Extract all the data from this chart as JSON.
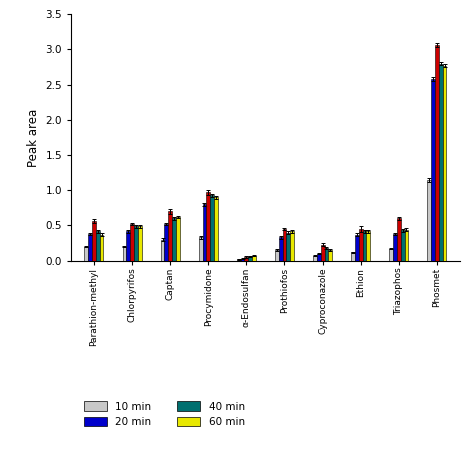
{
  "categories": [
    "Parathion-methyl",
    "Chlorpyrifos",
    "Captan",
    "Procymidone",
    "α-Endosulfan",
    "Prothiofos",
    "Cyproconazole",
    "Ethion",
    "Triazophos",
    "Phosmet"
  ],
  "series": {
    "10 min": [
      0.2,
      0.2,
      0.3,
      0.33,
      0.02,
      0.15,
      0.07,
      0.12,
      0.17,
      1.15
    ],
    "20 min": [
      0.38,
      0.42,
      0.52,
      0.8,
      0.03,
      0.33,
      0.1,
      0.37,
      0.38,
      2.58
    ],
    "30 min": [
      0.56,
      0.52,
      0.7,
      0.97,
      0.05,
      0.45,
      0.23,
      0.45,
      0.6,
      3.06
    ],
    "40 min": [
      0.42,
      0.49,
      0.6,
      0.93,
      0.06,
      0.4,
      0.18,
      0.42,
      0.43,
      2.8
    ],
    "60 min": [
      0.37,
      0.49,
      0.62,
      0.9,
      0.07,
      0.42,
      0.15,
      0.42,
      0.44,
      2.77
    ]
  },
  "errors": {
    "10 min": [
      0.01,
      0.01,
      0.02,
      0.02,
      0.005,
      0.01,
      0.005,
      0.01,
      0.01,
      0.03
    ],
    "20 min": [
      0.02,
      0.02,
      0.02,
      0.02,
      0.005,
      0.02,
      0.01,
      0.02,
      0.02,
      0.03
    ],
    "30 min": [
      0.03,
      0.02,
      0.03,
      0.03,
      0.01,
      0.02,
      0.02,
      0.04,
      0.02,
      0.03
    ],
    "40 min": [
      0.02,
      0.02,
      0.02,
      0.02,
      0.01,
      0.02,
      0.01,
      0.02,
      0.02,
      0.02
    ],
    "60 min": [
      0.02,
      0.02,
      0.02,
      0.02,
      0.01,
      0.02,
      0.01,
      0.02,
      0.02,
      0.02
    ]
  },
  "colors": {
    "10 min": "#c8c8c8",
    "20 min": "#0000cc",
    "30 min": "#cc0000",
    "40 min": "#007070",
    "60 min": "#e8e800"
  },
  "ylabel": "Peak area",
  "ylim": [
    0,
    3.5
  ],
  "yticks": [
    0.0,
    0.5,
    1.0,
    1.5,
    2.0,
    2.5,
    3.0,
    3.5
  ],
  "legend_entries": [
    "10 min",
    "20 min",
    "40 min",
    "60 min"
  ],
  "legend_colors": [
    "#c8c8c8",
    "#0000cc",
    "#007070",
    "#e8e800"
  ],
  "background_color": "#ffffff",
  "bar_edge_color": "#000000",
  "bar_linewidth": 0.4,
  "figsize": [
    4.74,
    4.74
  ],
  "dpi": 100
}
